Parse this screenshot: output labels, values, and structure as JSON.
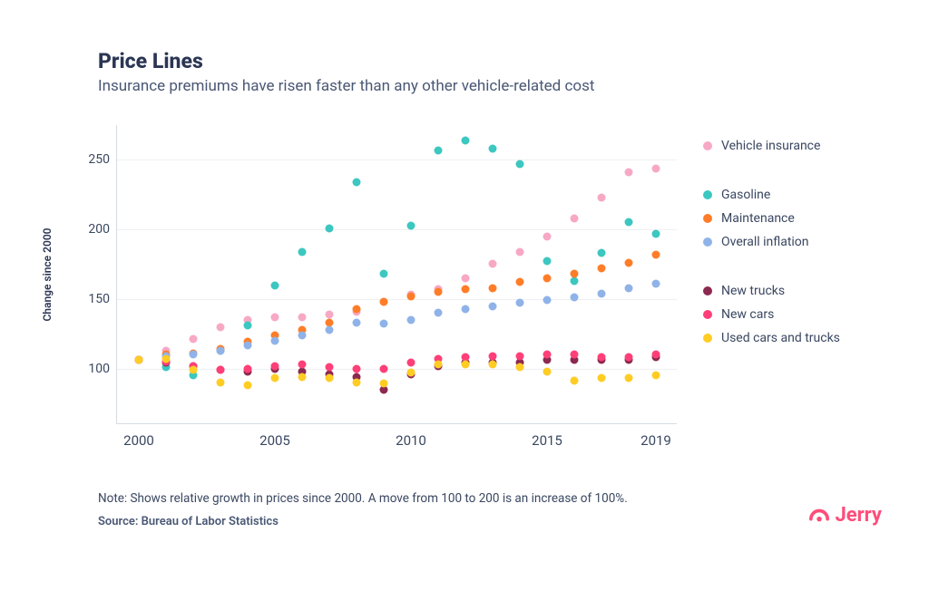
{
  "header": {
    "title": "Price Lines",
    "subtitle": "Insurance premiums have risen faster than any other vehicle-related cost"
  },
  "chart": {
    "type": "scatter",
    "ylabel": "Change since 2000",
    "xlim": [
      1999.2,
      2019.8
    ],
    "ylim": [
      60,
      275
    ],
    "xticks": [
      2000,
      2005,
      2010,
      2015,
      2019
    ],
    "xtick_labels": [
      "2000",
      "2005",
      "2010",
      "2015",
      "2019"
    ],
    "yticks": [
      100,
      150,
      200,
      250
    ],
    "ytick_labels": [
      "100",
      "150",
      "200",
      "250"
    ],
    "grid_color": "#eef0f4",
    "axis_color": "#d6dbe3",
    "background_color": "#ffffff",
    "marker_size": 9,
    "years": [
      2000,
      2001,
      2002,
      2003,
      2004,
      2005,
      2006,
      2007,
      2008,
      2009,
      2010,
      2011,
      2012,
      2013,
      2014,
      2015,
      2016,
      2017,
      2018,
      2019
    ],
    "series": [
      {
        "key": "vehicle_insurance",
        "label": "Vehicle insurance",
        "color": "#f7a8c4",
        "group": 0,
        "values": [
          106,
          113,
          121,
          130,
          135,
          137,
          137,
          139,
          141,
          148,
          153,
          157,
          165,
          175,
          184,
          195,
          208,
          223,
          241,
          244
        ]
      },
      {
        "key": "gasoline",
        "label": "Gasoline",
        "color": "#3cc7c0",
        "group": 1,
        "values": [
          106,
          101,
          95,
          113,
          131,
          160,
          184,
          201,
          234,
          168,
          203,
          257,
          264,
          258,
          247,
          177,
          163,
          183,
          205,
          197
        ]
      },
      {
        "key": "maintenance",
        "label": "Maintenance",
        "color": "#ff7d28",
        "group": 1,
        "values": [
          106,
          110,
          111,
          114,
          119,
          124,
          128,
          133,
          143,
          148,
          152,
          155,
          157,
          158,
          162,
          165,
          168,
          172,
          176,
          182
        ]
      },
      {
        "key": "overall_inflation",
        "label": "Overall inflation",
        "color": "#8fb3e8",
        "group": 1,
        "values": [
          106,
          109,
          110,
          113,
          117,
          120,
          124,
          128,
          133,
          132,
          135,
          140,
          143,
          145,
          147,
          149,
          151,
          154,
          158,
          161
        ]
      },
      {
        "key": "new_trucks",
        "label": "New trucks",
        "color": "#8b2950",
        "group": 2,
        "values": [
          106,
          104,
          102,
          99,
          98,
          100,
          98,
          96,
          94,
          85,
          96,
          102,
          104,
          104,
          104,
          106,
          106,
          106,
          106,
          108
        ]
      },
      {
        "key": "new_cars",
        "label": "New cars",
        "color": "#ff3f78",
        "group": 2,
        "values": [
          106,
          105,
          102,
          99,
          100,
          102,
          103,
          101,
          100,
          100,
          104,
          107,
          108,
          109,
          109,
          110,
          110,
          108,
          108,
          110
        ]
      },
      {
        "key": "used_cars",
        "label": "Used cars and trucks",
        "color": "#ffcc24",
        "group": 2,
        "values": [
          106,
          107,
          99,
          90,
          88,
          93,
          94,
          93,
          90,
          89,
          97,
          103,
          103,
          103,
          101,
          98,
          91,
          93,
          93,
          95
        ]
      }
    ]
  },
  "legend_groups": [
    [
      "vehicle_insurance"
    ],
    [
      "gasoline",
      "maintenance",
      "overall_inflation"
    ],
    [
      "new_trucks",
      "new_cars",
      "used_cars"
    ]
  ],
  "footer": {
    "note": "Note:  Shows relative growth in prices since 2000. A move from 100 to 200 is an increase of 100%.",
    "source": "Source: Bureau of Labor Statistics"
  },
  "brand": {
    "name": "Jerry",
    "color": "#ff4d7a"
  }
}
